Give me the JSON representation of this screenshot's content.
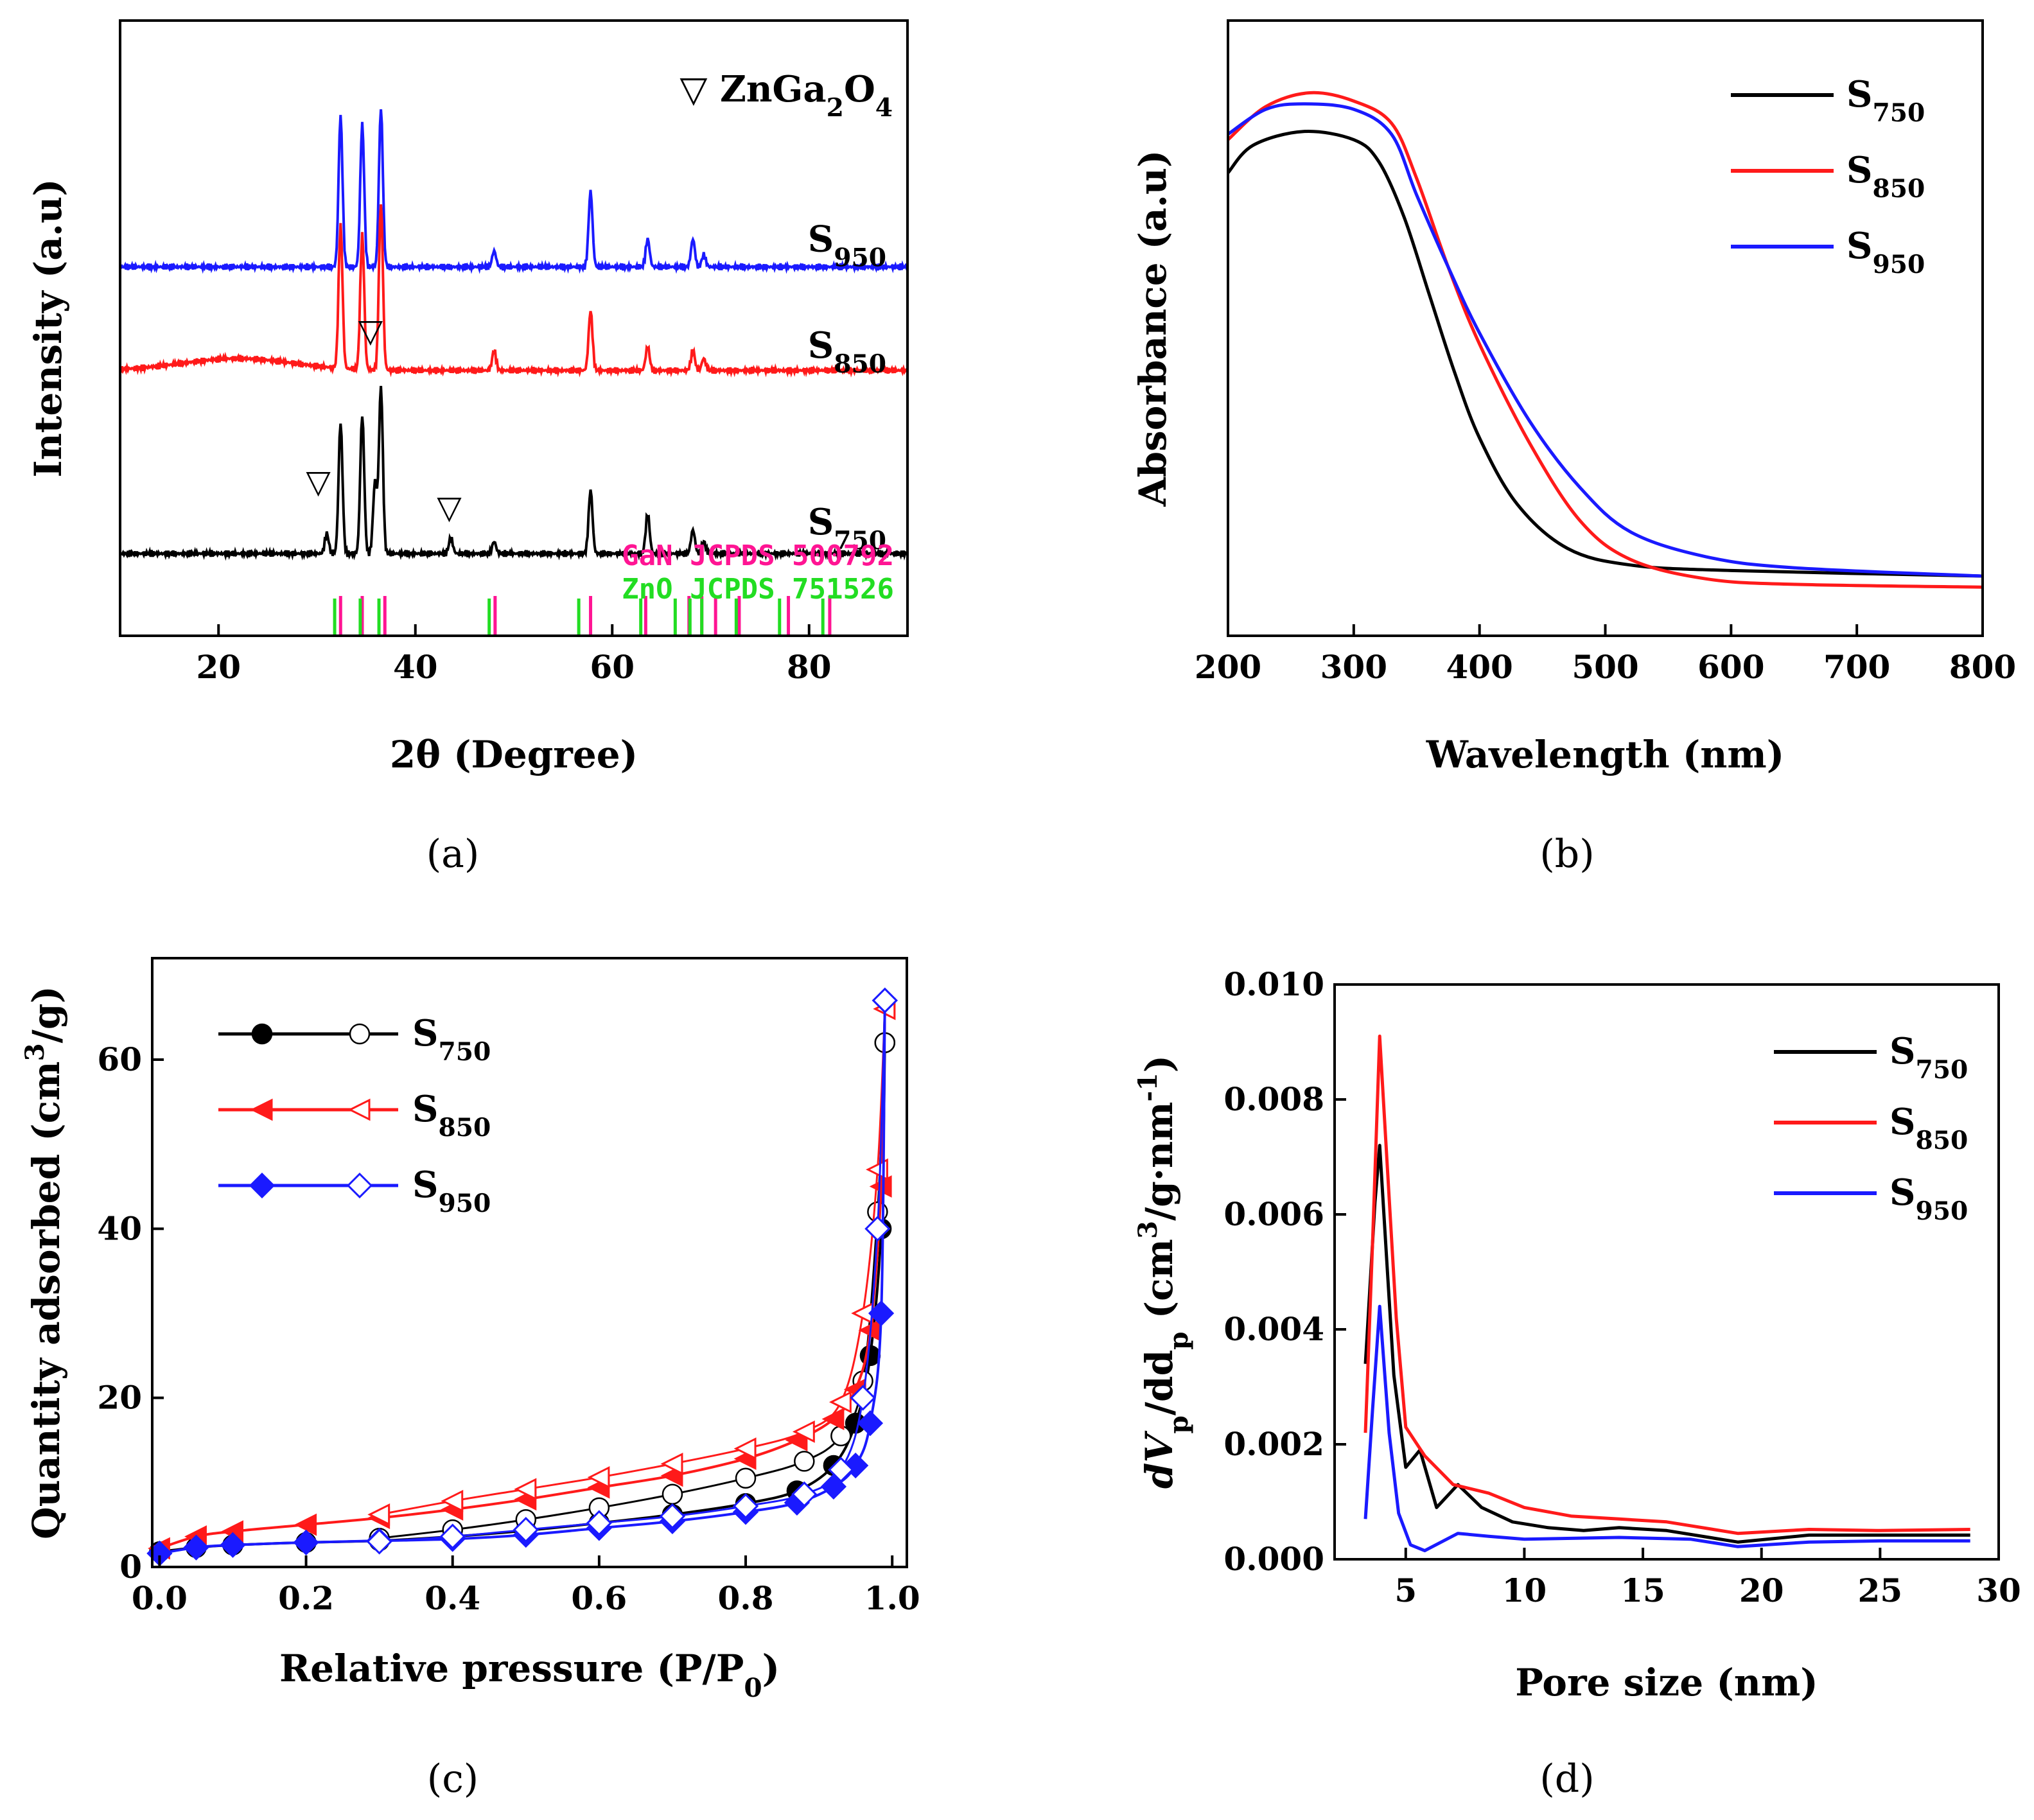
{
  "colors": {
    "s750": "#000000",
    "s850": "#ff1a1a",
    "s950": "#1a1aff",
    "gan": "#ff1493",
    "zno": "#22dd22"
  },
  "chart_data": [
    {
      "id": "a",
      "type": "line",
      "panel_label": "(a)",
      "xlabel": "2θ (Degree)",
      "ylabel": "Intensity (a.u)",
      "xlim": [
        10,
        90
      ],
      "xticks": [
        20,
        40,
        60,
        80
      ],
      "annotation": {
        "symbol": "▽",
        "prefix": "ZnGa",
        "sub1": "2",
        "mid": "O",
        "sub2": "4"
      },
      "series": [
        {
          "name": "S",
          "sub": "950",
          "color": "s950",
          "baseline": 0.62,
          "peaks": [
            [
              32.4,
              0.38
            ],
            [
              34.6,
              0.36
            ],
            [
              36.5,
              0.4
            ],
            [
              48.0,
              0.04
            ],
            [
              57.8,
              0.19
            ],
            [
              63.6,
              0.07
            ],
            [
              68.2,
              0.07
            ],
            [
              69.3,
              0.03
            ]
          ]
        },
        {
          "name": "S",
          "sub": "850",
          "color": "s850",
          "baseline": 0.36,
          "peaks": [
            [
              32.4,
              0.36
            ],
            [
              34.6,
              0.34
            ],
            [
              36.5,
              0.42
            ],
            [
              48.0,
              0.05
            ],
            [
              57.8,
              0.15
            ],
            [
              63.6,
              0.06
            ],
            [
              68.2,
              0.05
            ],
            [
              69.3,
              0.03
            ]
          ]
        },
        {
          "name": "S",
          "sub": "750",
          "color": "s750",
          "baseline": -0.1,
          "peaks": [
            [
              31.0,
              0.05
            ],
            [
              32.4,
              0.33
            ],
            [
              34.6,
              0.35
            ],
            [
              35.9,
              0.18
            ],
            [
              36.5,
              0.42
            ],
            [
              43.6,
              0.04
            ],
            [
              48.0,
              0.03
            ],
            [
              57.8,
              0.16
            ],
            [
              63.6,
              0.1
            ],
            [
              68.2,
              0.06
            ],
            [
              69.3,
              0.03
            ]
          ]
        }
      ],
      "triangle_markers": [
        30.4,
        35.7,
        43.7
      ],
      "references": [
        {
          "name": "GaN JCPDS 500792",
          "color": "gan",
          "positions": [
            32.4,
            34.6,
            36.9,
            48.1,
            57.8,
            63.4,
            67.8,
            69.1,
            70.5,
            72.9,
            77.9,
            82.1
          ]
        },
        {
          "name": "ZnO JCPDS 751526",
          "color": "zno",
          "positions": [
            31.8,
            34.4,
            36.3,
            47.5,
            56.6,
            62.9,
            66.4,
            67.9,
            69.1,
            72.6,
            77.0,
            81.4
          ]
        }
      ]
    },
    {
      "id": "b",
      "type": "line",
      "panel_label": "(b)",
      "xlabel": "Wavelength (nm)",
      "ylabel": "Absorbance (a.u)",
      "xlim": [
        200,
        800
      ],
      "ylim": [
        0,
        1
      ],
      "xticks": [
        200,
        300,
        400,
        500,
        600,
        700,
        800
      ],
      "series": [
        {
          "name": "S",
          "sub": "750",
          "color": "s750",
          "points": [
            [
              200,
              0.78
            ],
            [
              220,
              0.83
            ],
            [
              260,
              0.855
            ],
            [
              300,
              0.84
            ],
            [
              320,
              0.8
            ],
            [
              340,
              0.7
            ],
            [
              360,
              0.56
            ],
            [
              380,
              0.42
            ],
            [
              400,
              0.3
            ],
            [
              430,
              0.18
            ],
            [
              470,
              0.1
            ],
            [
              520,
              0.07
            ],
            [
              600,
              0.06
            ],
            [
              800,
              0.05
            ]
          ]
        },
        {
          "name": "S",
          "sub": "850",
          "color": "s850",
          "points": [
            [
              200,
              0.84
            ],
            [
              230,
              0.9
            ],
            [
              265,
              0.925
            ],
            [
              300,
              0.91
            ],
            [
              330,
              0.87
            ],
            [
              350,
              0.77
            ],
            [
              375,
              0.61
            ],
            [
              400,
              0.47
            ],
            [
              440,
              0.29
            ],
            [
              480,
              0.15
            ],
            [
              520,
              0.08
            ],
            [
              580,
              0.045
            ],
            [
              650,
              0.035
            ],
            [
              800,
              0.03
            ]
          ]
        },
        {
          "name": "S",
          "sub": "950",
          "color": "s950",
          "points": [
            [
              200,
              0.85
            ],
            [
              230,
              0.895
            ],
            [
              260,
              0.905
            ],
            [
              300,
              0.895
            ],
            [
              330,
              0.85
            ],
            [
              350,
              0.74
            ],
            [
              375,
              0.61
            ],
            [
              400,
              0.49
            ],
            [
              440,
              0.33
            ],
            [
              480,
              0.21
            ],
            [
              520,
              0.13
            ],
            [
              580,
              0.085
            ],
            [
              650,
              0.065
            ],
            [
              800,
              0.05
            ]
          ]
        }
      ]
    },
    {
      "id": "c",
      "type": "scatter",
      "panel_label": "(c)",
      "xlabel": "Relative pressure (P/P",
      "xlabel_sub": "0",
      "xlabel_end": ")",
      "ylabel": "Quantity adsorbed (cm",
      "ylabel_sup": "3",
      "ylabel_end": "/g)",
      "xlim": [
        -0.01,
        1.02
      ],
      "ylim": [
        0,
        72
      ],
      "xticks": [
        0.0,
        0.2,
        0.4,
        0.6,
        0.8,
        1.0
      ],
      "yticks": [
        0,
        20,
        40,
        60
      ],
      "series": [
        {
          "name": "S",
          "sub": "750",
          "color": "s750",
          "marker": "circle",
          "adsorption": [
            [
              0.0,
              1.8
            ],
            [
              0.05,
              2.3
            ],
            [
              0.1,
              2.6
            ],
            [
              0.2,
              2.9
            ],
            [
              0.3,
              3.1
            ],
            [
              0.4,
              3.6
            ],
            [
              0.5,
              4.3
            ],
            [
              0.6,
              5.2
            ],
            [
              0.7,
              6.2
            ],
            [
              0.8,
              7.5
            ],
            [
              0.87,
              9.0
            ],
            [
              0.92,
              12.0
            ],
            [
              0.95,
              17.0
            ],
            [
              0.97,
              25.0
            ],
            [
              0.985,
              40.0
            ],
            [
              0.99,
              62.0
            ]
          ],
          "desorption": [
            [
              0.99,
              62.0
            ],
            [
              0.98,
              42.0
            ],
            [
              0.96,
              22.0
            ],
            [
              0.93,
              15.5
            ],
            [
              0.88,
              12.5
            ],
            [
              0.8,
              10.5
            ],
            [
              0.7,
              8.6
            ],
            [
              0.6,
              7.0
            ],
            [
              0.5,
              5.6
            ],
            [
              0.4,
              4.4
            ],
            [
              0.3,
              3.4
            ]
          ]
        },
        {
          "name": "S",
          "sub": "850",
          "color": "s850",
          "marker": "triangle",
          "adsorption": [
            [
              0.0,
              2.2
            ],
            [
              0.05,
              3.6
            ],
            [
              0.1,
              4.2
            ],
            [
              0.2,
              5.0
            ],
            [
              0.3,
              5.8
            ],
            [
              0.4,
              6.8
            ],
            [
              0.5,
              8.0
            ],
            [
              0.6,
              9.4
            ],
            [
              0.7,
              10.8
            ],
            [
              0.8,
              12.8
            ],
            [
              0.87,
              15.0
            ],
            [
              0.92,
              17.5
            ],
            [
              0.95,
              21.0
            ],
            [
              0.97,
              28.0
            ],
            [
              0.985,
              45.0
            ],
            [
              0.99,
              66.0
            ]
          ],
          "desorption": [
            [
              0.99,
              66.0
            ],
            [
              0.98,
              47.0
            ],
            [
              0.96,
              30.0
            ],
            [
              0.93,
              19.5
            ],
            [
              0.88,
              16.0
            ],
            [
              0.8,
              14.0
            ],
            [
              0.7,
              12.2
            ],
            [
              0.6,
              10.6
            ],
            [
              0.5,
              9.2
            ],
            [
              0.4,
              7.8
            ],
            [
              0.3,
              6.2
            ]
          ]
        },
        {
          "name": "S",
          "sub": "950",
          "color": "s950",
          "marker": "diamond",
          "adsorption": [
            [
              0.0,
              1.6
            ],
            [
              0.05,
              2.3
            ],
            [
              0.1,
              2.6
            ],
            [
              0.2,
              2.9
            ],
            [
              0.3,
              3.1
            ],
            [
              0.4,
              3.3
            ],
            [
              0.5,
              3.8
            ],
            [
              0.6,
              4.6
            ],
            [
              0.7,
              5.4
            ],
            [
              0.8,
              6.5
            ],
            [
              0.87,
              7.6
            ],
            [
              0.92,
              9.5
            ],
            [
              0.95,
              12.0
            ],
            [
              0.97,
              17.0
            ],
            [
              0.985,
              30.0
            ],
            [
              0.99,
              67.0
            ]
          ],
          "desorption": [
            [
              0.99,
              67.0
            ],
            [
              0.98,
              40.0
            ],
            [
              0.96,
              20.0
            ],
            [
              0.93,
              11.5
            ],
            [
              0.88,
              8.6
            ],
            [
              0.8,
              7.2
            ],
            [
              0.7,
              6.0
            ],
            [
              0.6,
              5.2
            ],
            [
              0.5,
              4.4
            ],
            [
              0.4,
              3.6
            ],
            [
              0.3,
              3.0
            ]
          ]
        }
      ]
    },
    {
      "id": "d",
      "type": "line",
      "panel_label": "(d)",
      "xlabel": "Pore size (nm)",
      "ylabel_parts": [
        "dV",
        "p",
        "/dd",
        "p",
        " (cm",
        "3",
        "/g·nm",
        "-1",
        ")"
      ],
      "xlim": [
        2,
        30
      ],
      "ylim": [
        0,
        0.01
      ],
      "xticks": [
        5,
        10,
        15,
        20,
        25,
        30
      ],
      "yticks": [
        0.0,
        0.002,
        0.004,
        0.006,
        0.008,
        0.01
      ],
      "ytick_labels": [
        "0.000",
        "0.002",
        "0.004",
        "0.006",
        "0.008",
        "0.010"
      ],
      "series": [
        {
          "name": "S",
          "sub": "750",
          "color": "s750",
          "points": [
            [
              3.3,
              0.0034
            ],
            [
              3.7,
              0.0062
            ],
            [
              3.9,
              0.0072
            ],
            [
              4.2,
              0.0052
            ],
            [
              4.5,
              0.0032
            ],
            [
              5.0,
              0.0016
            ],
            [
              5.6,
              0.0019
            ],
            [
              6.3,
              0.0009
            ],
            [
              7.2,
              0.0013
            ],
            [
              8.2,
              0.0009
            ],
            [
              9.5,
              0.00065
            ],
            [
              11,
              0.00055
            ],
            [
              12.5,
              0.0005
            ],
            [
              14,
              0.00055
            ],
            [
              16,
              0.0005
            ],
            [
              19,
              0.0003
            ],
            [
              22,
              0.00042
            ],
            [
              25,
              0.00042
            ],
            [
              28.8,
              0.00042
            ]
          ]
        },
        {
          "name": "S",
          "sub": "850",
          "color": "s850",
          "points": [
            [
              3.3,
              0.0022
            ],
            [
              3.6,
              0.0055
            ],
            [
              3.9,
              0.0091
            ],
            [
              4.2,
              0.007
            ],
            [
              4.6,
              0.0042
            ],
            [
              5.0,
              0.0023
            ],
            [
              5.8,
              0.0018
            ],
            [
              7.0,
              0.0013
            ],
            [
              8.5,
              0.00115
            ],
            [
              10,
              0.0009
            ],
            [
              12,
              0.00075
            ],
            [
              14,
              0.0007
            ],
            [
              16,
              0.00065
            ],
            [
              19,
              0.00045
            ],
            [
              22,
              0.00052
            ],
            [
              25,
              0.0005
            ],
            [
              28.8,
              0.00052
            ]
          ]
        },
        {
          "name": "S",
          "sub": "950",
          "color": "s950",
          "points": [
            [
              3.3,
              0.0007
            ],
            [
              3.6,
              0.0026
            ],
            [
              3.9,
              0.0044
            ],
            [
              4.3,
              0.0022
            ],
            [
              4.7,
              0.0008
            ],
            [
              5.2,
              0.00025
            ],
            [
              5.8,
              0.00015
            ],
            [
              7.2,
              0.00045
            ],
            [
              8.5,
              0.0004
            ],
            [
              10,
              0.00035
            ],
            [
              14,
              0.00038
            ],
            [
              17,
              0.00035
            ],
            [
              19,
              0.00022
            ],
            [
              22,
              0.0003
            ],
            [
              25,
              0.00032
            ],
            [
              28.8,
              0.00032
            ]
          ]
        }
      ]
    }
  ]
}
